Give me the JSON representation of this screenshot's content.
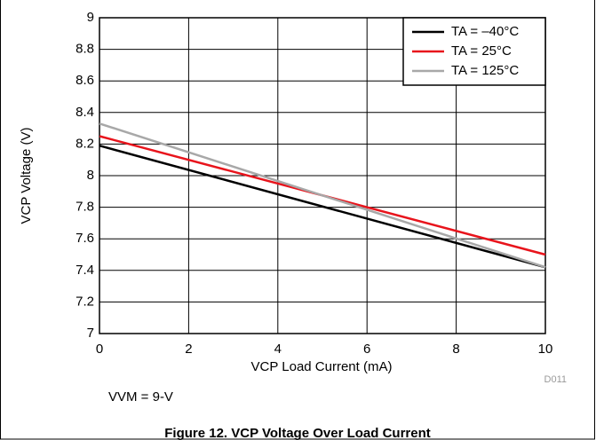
{
  "chart_data": {
    "type": "line",
    "x_label": "VCP Load Current (mA)",
    "y_label": "VCP Voltage (V)",
    "x": [
      0,
      10
    ],
    "series": [
      {
        "name": "TA = –40°C",
        "color": "#000000",
        "values": [
          8.19,
          7.42
        ]
      },
      {
        "name": "TA = 25°C",
        "color": "#e8141c",
        "values": [
          8.25,
          7.5
        ]
      },
      {
        "name": "TA = 125°C",
        "color": "#a8a8a8",
        "values": [
          8.33,
          7.42
        ]
      }
    ],
    "xlim": [
      0,
      10
    ],
    "xticks": [
      0,
      2,
      4,
      6,
      8,
      10
    ],
    "ylim": [
      7,
      9
    ],
    "yticks": [
      7,
      7.2,
      7.4,
      7.6,
      7.8,
      8,
      8.2,
      8.4,
      8.6,
      8.8,
      9
    ],
    "grid": true,
    "legend": "top-right",
    "code": "D011",
    "annotation": "VVM = 9-V",
    "caption": "Figure 12. VCP Voltage Over Load Current"
  }
}
